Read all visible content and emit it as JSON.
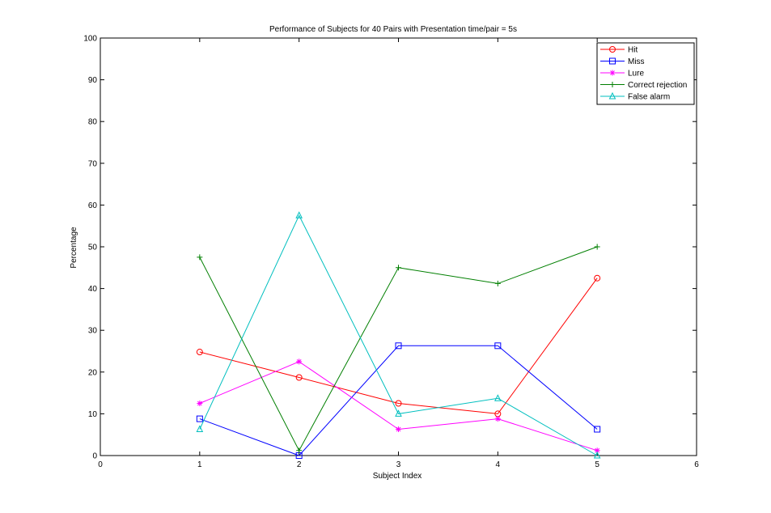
{
  "chart_data": {
    "type": "line",
    "title": "Performance of Subjects for 40 Pairs with Presentation time/pair = 5s",
    "xlabel": "Subject Index",
    "ylabel": "Percentage",
    "xlim": [
      0,
      6
    ],
    "ylim": [
      0,
      100
    ],
    "xticks": [
      0,
      1,
      2,
      3,
      4,
      5,
      6
    ],
    "yticks": [
      0,
      10,
      20,
      30,
      40,
      50,
      60,
      70,
      80,
      90,
      100
    ],
    "x": [
      1,
      2,
      3,
      4,
      5
    ],
    "legend_position": "top-right",
    "grid": false,
    "series": [
      {
        "name": "Hit",
        "color": "#ff0000",
        "marker": "circle",
        "values": [
          24.8,
          18.7,
          12.5,
          10.0,
          42.5
        ]
      },
      {
        "name": "Miss",
        "color": "#0000ff",
        "marker": "square",
        "values": [
          8.8,
          0.0,
          26.3,
          26.3,
          6.3
        ]
      },
      {
        "name": "Lure",
        "color": "#ff00ff",
        "marker": "asterisk",
        "values": [
          12.5,
          22.5,
          6.3,
          8.8,
          1.2
        ]
      },
      {
        "name": "Correct rejection",
        "color": "#007f00",
        "marker": "plus",
        "values": [
          47.5,
          1.2,
          45.0,
          41.2,
          50.0
        ]
      },
      {
        "name": "False alarm",
        "color": "#00bfbf",
        "marker": "triangle",
        "values": [
          6.3,
          57.5,
          10.0,
          13.7,
          0.0
        ]
      }
    ]
  }
}
